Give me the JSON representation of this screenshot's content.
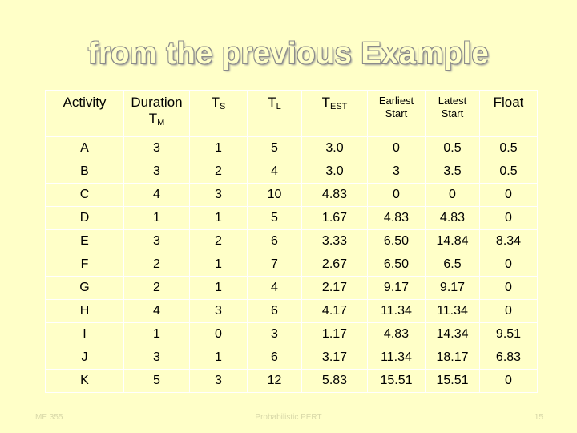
{
  "title": "from the previous Example",
  "table": {
    "headers": [
      {
        "main": "Activity",
        "sub": ""
      },
      {
        "main": "Duration",
        "line2": "T",
        "sub": "M"
      },
      {
        "main": "T",
        "sub": "S"
      },
      {
        "main": "T",
        "sub": "L"
      },
      {
        "main": "T",
        "sub": "EST"
      },
      {
        "main": "Earliest",
        "line2": "Start"
      },
      {
        "main": "Latest",
        "line2": "Start"
      },
      {
        "main": "Float"
      }
    ],
    "rows": [
      [
        "A",
        "3",
        "1",
        "5",
        "3.0",
        "0",
        "0.5",
        "0.5"
      ],
      [
        "B",
        "3",
        "2",
        "4",
        "3.0",
        "3",
        "3.5",
        "0.5"
      ],
      [
        "C",
        "4",
        "3",
        "10",
        "4.83",
        "0",
        "0",
        "0"
      ],
      [
        "D",
        "1",
        "1",
        "5",
        "1.67",
        "4.83",
        "4.83",
        "0"
      ],
      [
        "E",
        "3",
        "2",
        "6",
        "3.33",
        "6.50",
        "14.84",
        "8.34"
      ],
      [
        "F",
        "2",
        "1",
        "7",
        "2.67",
        "6.50",
        "6.5",
        "0"
      ],
      [
        "G",
        "2",
        "1",
        "4",
        "2.17",
        "9.17",
        "9.17",
        "0"
      ],
      [
        "H",
        "4",
        "3",
        "6",
        "4.17",
        "11.34",
        "11.34",
        "0"
      ],
      [
        "I",
        "1",
        "0",
        "3",
        "1.17",
        "4.83",
        "14.34",
        "9.51"
      ],
      [
        "J",
        "3",
        "1",
        "6",
        "3.17",
        "11.34",
        "18.17",
        "6.83"
      ],
      [
        "K",
        "5",
        "3",
        "12",
        "5.83",
        "15.51",
        "15.51",
        "0"
      ]
    ]
  },
  "footer": {
    "left": "ME 355",
    "center": "Probabilistic PERT",
    "right": "15"
  }
}
